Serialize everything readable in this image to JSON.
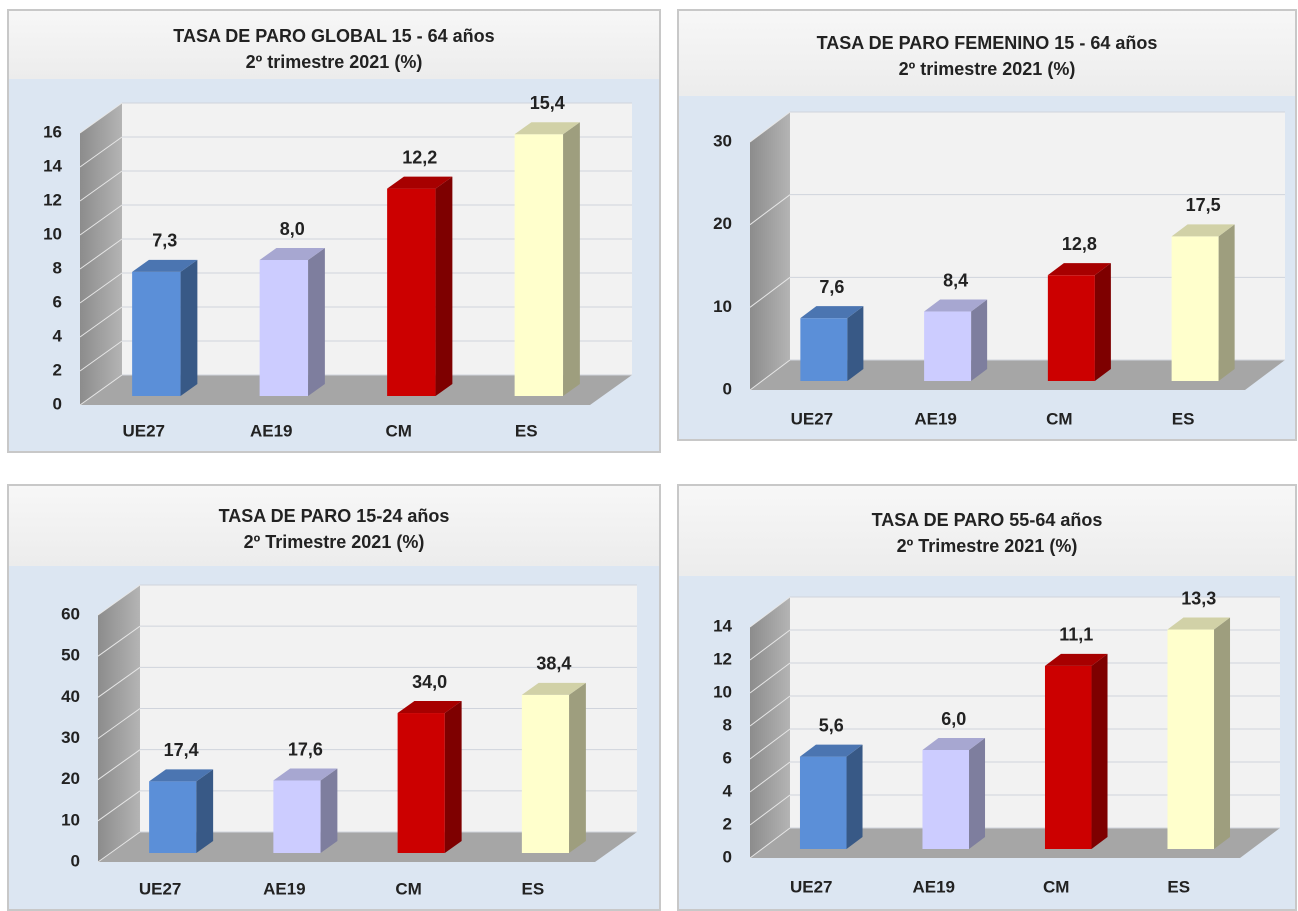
{
  "chart_data": [
    {
      "type": "bar3d",
      "title": "TASA DE PARO GLOBAL 15 - 64  años",
      "subtitle": "2º trimestre 2021 (%)",
      "categories": [
        "UE27",
        "AE19",
        "CM",
        "ES"
      ],
      "values": [
        7.3,
        8.0,
        12.2,
        15.4
      ],
      "value_labels": [
        "7,3",
        "8,0",
        "12,2",
        "15,4"
      ],
      "colors": [
        "#5b8fd8",
        "#ccccff",
        "#cc0000",
        "#ffffcc"
      ],
      "ylim": [
        0,
        16
      ],
      "yticks": [
        0,
        2,
        4,
        6,
        8,
        10,
        12,
        14,
        16
      ],
      "grid": true
    },
    {
      "type": "bar3d",
      "title": "TASA DE PARO FEMENINO 15 - 64 años",
      "subtitle": "2º trimestre 2021 (%)",
      "categories": [
        "UE27",
        "AE19",
        "CM",
        "ES"
      ],
      "values": [
        7.6,
        8.4,
        12.8,
        17.5
      ],
      "value_labels": [
        "7,6",
        "8,4",
        "12,8",
        "17,5"
      ],
      "colors": [
        "#5b8fd8",
        "#ccccff",
        "#cc0000",
        "#ffffcc"
      ],
      "ylim": [
        0,
        30
      ],
      "yticks": [
        0,
        10,
        20,
        30
      ],
      "grid": true
    },
    {
      "type": "bar3d",
      "title": "TASA DE PARO 15-24 años",
      "subtitle": "2º Trimestre 2021 (%)",
      "categories": [
        "UE27",
        "AE19",
        "CM",
        "ES"
      ],
      "values": [
        17.4,
        17.6,
        34.0,
        38.4
      ],
      "value_labels": [
        "17,4",
        "17,6",
        "34,0",
        "38,4"
      ],
      "colors": [
        "#5b8fd8",
        "#ccccff",
        "#cc0000",
        "#ffffcc"
      ],
      "ylim": [
        0,
        60
      ],
      "yticks": [
        0,
        10,
        20,
        30,
        40,
        50,
        60
      ],
      "grid": true
    },
    {
      "type": "bar3d",
      "title": "TASA DE PARO 55-64 años",
      "subtitle": "2º Trimestre 2021 (%)",
      "categories": [
        "UE27",
        "AE19",
        "CM",
        "ES"
      ],
      "values": [
        5.6,
        6.0,
        11.1,
        13.3
      ],
      "value_labels": [
        "5,6",
        "6,0",
        "11,1",
        "13,3"
      ],
      "colors": [
        "#5b8fd8",
        "#ccccff",
        "#cc0000",
        "#ffffcc"
      ],
      "ylim": [
        0,
        14
      ],
      "yticks": [
        0,
        2,
        4,
        6,
        8,
        10,
        12,
        14
      ],
      "grid": true
    }
  ]
}
